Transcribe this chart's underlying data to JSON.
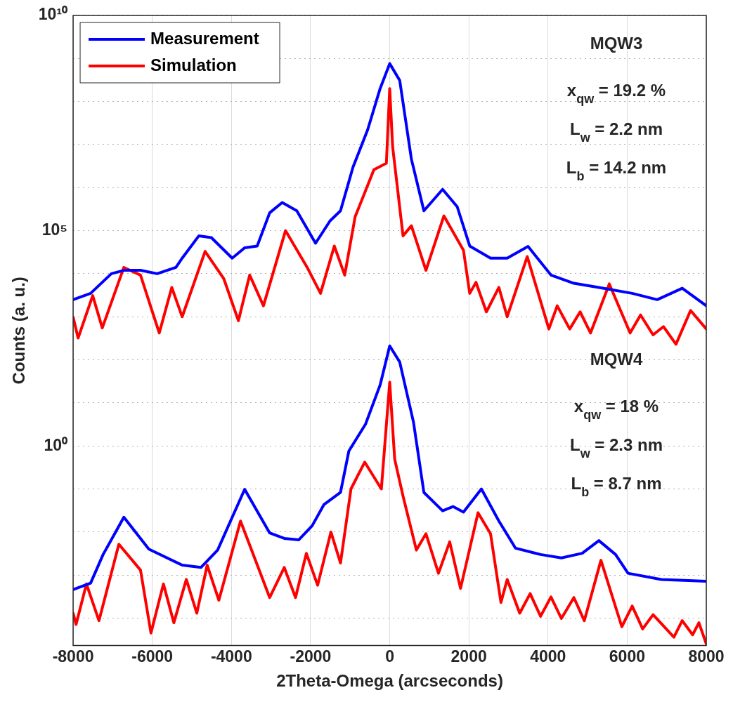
{
  "chart_data": {
    "type": "line",
    "xlabel": "2Theta-Omega (arcseconds)",
    "ylabel": "Counts (a. u.)",
    "log": "y",
    "grid": true,
    "legend": "top left",
    "marker": "none",
    "line_style": "solid",
    "xlim": [
      -8000,
      8000
    ],
    "xticks": [
      -8000,
      -6000,
      -4000,
      -2000,
      0,
      2000,
      4000,
      6000,
      8000
    ],
    "ylim": [
      2.3e-05,
      10000000000.0
    ],
    "yticks": [
      {
        "value": 0.0001,
        "label": null
      },
      {
        "value": 0.001,
        "label": null
      },
      {
        "value": 0.01,
        "label": null
      },
      {
        "value": 0.1,
        "label": null
      },
      {
        "value": 1,
        "label": "10⁰"
      },
      {
        "value": 10,
        "label": null
      },
      {
        "value": 100,
        "label": null
      },
      {
        "value": 1000,
        "label": null
      },
      {
        "value": 10000,
        "label": null
      },
      {
        "value": 100000,
        "label": "10⁵"
      },
      {
        "value": 1000000.0,
        "label": null
      },
      {
        "value": 10000000.0,
        "label": null
      },
      {
        "value": 100000000.0,
        "label": null
      },
      {
        "value": 1000000000.0,
        "label": null
      },
      {
        "value": 10000000000.0,
        "label": "10¹⁰"
      }
    ],
    "annotations": [
      "MQW3",
      "x$_{qw}$ = 19.2 %",
      "L$_{w}$ = 2.2 nm",
      "L$_{b}$ = 14.2 nm",
      "MQW4",
      "x$_{qw}$ = 18 %",
      "L$_{w}$ = 2.3 nm",
      "L$_{b}$ = 8.7 nm"
    ],
    "series": [
      {
        "name": "Measurement",
        "color": "#0000ff",
        "x": [
          -8000,
          -7558,
          -7034,
          -6718,
          -6297,
          -5876,
          -5402,
          -5244,
          -4822,
          -4507,
          -3980,
          -3665,
          -3349,
          -3033,
          -2717,
          -2348,
          -1874,
          -1506,
          -1243,
          -927,
          -558,
          -242,
          0,
          253,
          548,
          864,
          1337,
          1706,
          2022,
          2548,
          2969,
          3496,
          4075,
          4654,
          5286,
          6128,
          6760,
          7392,
          8000
        ],
        "values": [
          2500.0,
          3500.0,
          10000.0,
          12000.0,
          12000.0,
          10000.0,
          14000.0,
          23000.0,
          76000.0,
          69000.0,
          23000.0,
          40000.0,
          44000.0,
          260000.0,
          450000.0,
          290000.0,
          51000.0,
          170000.0,
          290000.0,
          3000000.0,
          22000000.0,
          200000000.0,
          760000000.0,
          310000000.0,
          4600000.0,
          290000.0,
          910000.0,
          360000.0,
          44000.0,
          23000.0,
          23000.0,
          43000.0,
          9300.0,
          6000.0,
          4800.0,
          3500.0,
          2500.0,
          4600.0,
          1800.0
        ]
      },
      {
        "name": "Simulation",
        "color": "#ff0000",
        "x": [
          -8000,
          -7874,
          -7505,
          -7263,
          -6718,
          -6297,
          -5823,
          -5507,
          -5244,
          -4665,
          -4191,
          -3823,
          -3538,
          -3191,
          -2633,
          -2085,
          -1748,
          -1400,
          -1137,
          -874,
          -400,
          -84,
          0,
          74,
          337,
          548,
          916,
          1369,
          1864,
          2022,
          2180,
          2443,
          2759,
          2969,
          3475,
          4022,
          4233,
          4549,
          4812,
          5075,
          5549,
          6075,
          6339,
          6655,
          6918,
          7234,
          7603,
          8000
        ],
        "values": [
          980,
          320,
          3100.0,
          550,
          14000.0,
          9300.0,
          420,
          4800.0,
          1000.0,
          33000.0,
          7600.0,
          810,
          9300.0,
          1800.0,
          100000.0,
          14000.0,
          3500.0,
          44000.0,
          9300.0,
          210000.0,
          2600000.0,
          3700000.0,
          200000000.0,
          8900000.0,
          76000.0,
          130000.0,
          12000.0,
          220000.0,
          35000.0,
          3500.0,
          6300.0,
          1300.0,
          4800.0,
          1000.0,
          25000.0,
          520,
          1800.0,
          520,
          1300.0,
          420,
          5800.0,
          420,
          1100.0,
          380,
          590,
          230,
          1400.0,
          520
        ]
      },
      {
        "color": "#0000ff",
        "x": [
          -8000,
          -7558,
          -7242,
          -6718,
          -6086,
          -5244,
          -4770,
          -4349,
          -3665,
          -3033,
          -2664,
          -2296,
          -1959,
          -1664,
          -1243,
          -1032,
          -611,
          -242,
          0,
          253,
          600,
          864,
          1337,
          1600,
          1864,
          2317,
          2759,
          3180,
          3812,
          4338,
          4865,
          5286,
          5707,
          6023,
          6865,
          8000
        ],
        "values": [
          0.00046,
          0.00065,
          0.003,
          0.022,
          0.004,
          0.0017,
          0.0015,
          0.0038,
          0.098,
          0.0095,
          0.0071,
          0.0066,
          0.014,
          0.043,
          0.083,
          0.76,
          3.2,
          26,
          210,
          89,
          3.6,
          0.083,
          0.031,
          0.039,
          0.029,
          0.1,
          0.018,
          0.0042,
          0.003,
          0.0025,
          0.0032,
          0.0063,
          0.003,
          0.0011,
          0.00079,
          0.00072
        ]
      },
      {
        "color": "#ff0000",
        "x": [
          -8000,
          -7926,
          -7663,
          -7347,
          -6844,
          -6297,
          -6033,
          -5718,
          -5455,
          -5139,
          -4875,
          -4612,
          -4317,
          -3770,
          -3033,
          -2664,
          -2380,
          -2106,
          -1822,
          -1485,
          -1243,
          -979,
          -632,
          -211,
          0,
          126,
          337,
          674,
          916,
          1232,
          1516,
          1790,
          2232,
          2548,
          2811,
          2969,
          3285,
          3549,
          3812,
          4075,
          4338,
          4654,
          4917,
          5338,
          5865,
          6128,
          6392,
          6655,
          7181,
          7392,
          7655,
          7813,
          8000
        ],
        "values": [
          0.00013,
          7.1e-05,
          0.00062,
          8.7e-05,
          0.0052,
          0.0013,
          4.5e-05,
          0.00062,
          7.8e-05,
          0.00079,
          0.00013,
          0.0017,
          0.00026,
          0.018,
          0.0003,
          0.0015,
          0.0003,
          0.0032,
          0.00058,
          0.01,
          0.0019,
          0.1,
          0.42,
          0.1,
          30,
          0.49,
          0.068,
          0.0038,
          0.0091,
          0.0011,
          0.0059,
          0.00049,
          0.028,
          0.0091,
          0.00023,
          0.00079,
          0.00013,
          0.00037,
          0.00011,
          0.00031,
          9.8e-05,
          0.0003,
          8.7e-05,
          0.0022,
          6.3e-05,
          0.00019,
          5.6e-05,
          0.00012,
          3.6e-05,
          8.7e-05,
          4.1e-05,
          7.8e-05,
          2.5e-05
        ]
      }
    ]
  }
}
